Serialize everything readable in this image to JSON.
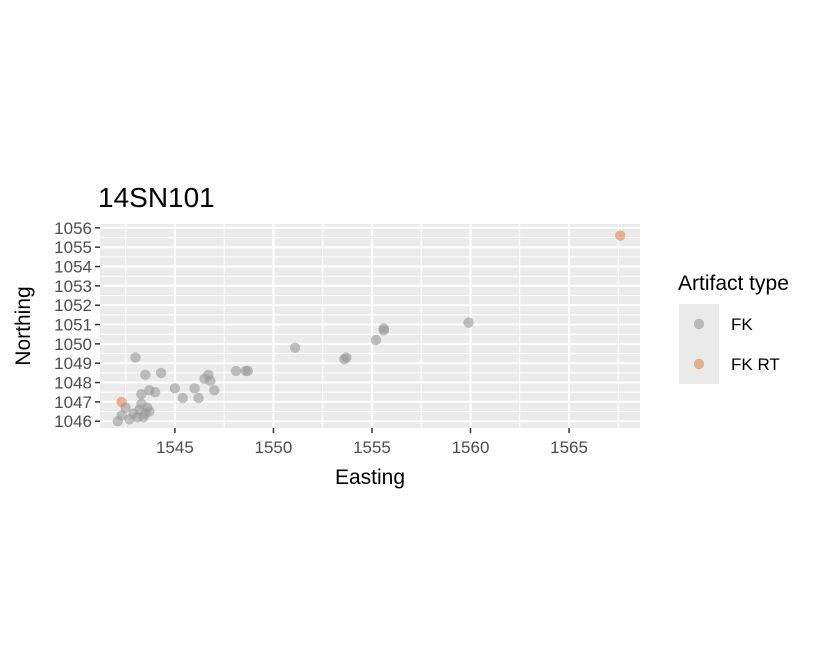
{
  "chart_data": {
    "type": "scatter",
    "title": "14SN101",
    "xlabel": "Easting",
    "ylabel": "Northing",
    "xlim": [
      1541.2,
      1568.6
    ],
    "ylim": [
      1045.65,
      1056.2
    ],
    "xticks": [
      1545,
      1550,
      1555,
      1560,
      1565
    ],
    "yticks": [
      1046,
      1047,
      1048,
      1049,
      1050,
      1051,
      1052,
      1053,
      1054,
      1055,
      1056
    ],
    "grid": true,
    "legend": {
      "title": "Artifact type",
      "placement": "right"
    },
    "series": [
      {
        "name": "FK",
        "color": "#999999",
        "points": [
          [
            1542.1,
            1046.0
          ],
          [
            1542.3,
            1046.3
          ],
          [
            1542.5,
            1046.7
          ],
          [
            1542.7,
            1046.1
          ],
          [
            1542.9,
            1046.4
          ],
          [
            1543.1,
            1046.2
          ],
          [
            1543.2,
            1046.6
          ],
          [
            1543.3,
            1046.9
          ],
          [
            1543.4,
            1046.2
          ],
          [
            1543.5,
            1046.4
          ],
          [
            1543.6,
            1046.7
          ],
          [
            1543.7,
            1046.5
          ],
          [
            1543.3,
            1047.4
          ],
          [
            1543.5,
            1048.4
          ],
          [
            1543.0,
            1049.3
          ],
          [
            1543.7,
            1047.6
          ],
          [
            1544.0,
            1047.5
          ],
          [
            1544.3,
            1048.5
          ],
          [
            1545.0,
            1047.7
          ],
          [
            1545.4,
            1047.2
          ],
          [
            1546.0,
            1047.7
          ],
          [
            1546.2,
            1047.2
          ],
          [
            1546.5,
            1048.2
          ],
          [
            1546.7,
            1048.4
          ],
          [
            1546.8,
            1048.1
          ],
          [
            1547.0,
            1047.6
          ],
          [
            1548.1,
            1048.6
          ],
          [
            1548.6,
            1048.6
          ],
          [
            1548.7,
            1048.6
          ],
          [
            1551.1,
            1049.8
          ],
          [
            1553.6,
            1049.2
          ],
          [
            1553.7,
            1049.3
          ],
          [
            1555.2,
            1050.2
          ],
          [
            1555.6,
            1050.7
          ],
          [
            1555.6,
            1050.8
          ],
          [
            1559.9,
            1051.1
          ]
        ]
      },
      {
        "name": "FK RT",
        "color": "#e08552",
        "points": [
          [
            1542.3,
            1047.0
          ],
          [
            1567.6,
            1055.6
          ]
        ]
      }
    ]
  }
}
